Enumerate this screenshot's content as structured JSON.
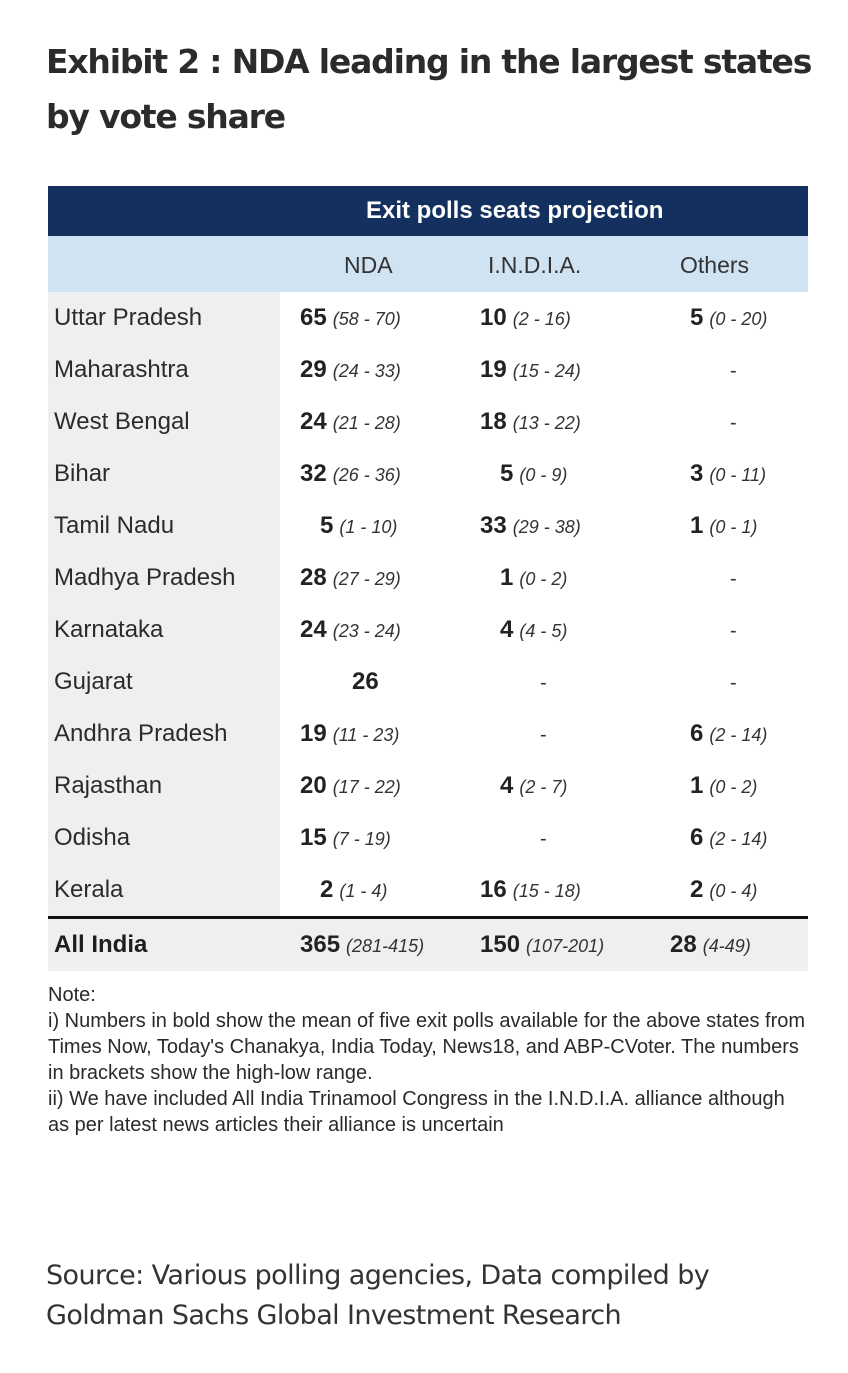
{
  "title": "Exhibit 2 : NDA leading in the largest states by vote share",
  "table": {
    "header": "Exit polls seats projection",
    "columns": [
      "NDA",
      "I.N.D.I.A.",
      "Others"
    ],
    "rows": [
      {
        "state": "Uttar Pradesh",
        "nda": "65",
        "nda_range": "(58 - 70)",
        "india": "10",
        "india_range": "(2 - 16)",
        "others": "5",
        "others_range": "(0 - 20)"
      },
      {
        "state": "Maharashtra",
        "nda": "29",
        "nda_range": "(24 - 33)",
        "india": "19",
        "india_range": "(15 - 24)",
        "others": "-",
        "others_range": ""
      },
      {
        "state": "West Bengal",
        "nda": "24",
        "nda_range": "(21 - 28)",
        "india": "18",
        "india_range": "(13 - 22)",
        "others": "-",
        "others_range": ""
      },
      {
        "state": "Bihar",
        "nda": "32",
        "nda_range": "(26 - 36)",
        "india": "5",
        "india_range": "(0 - 9)",
        "others": "3",
        "others_range": "(0 - 11)"
      },
      {
        "state": "Tamil Nadu",
        "nda": "5",
        "nda_range": "(1 - 10)",
        "india": "33",
        "india_range": "(29 - 38)",
        "others": "1",
        "others_range": "(0 - 1)"
      },
      {
        "state": "Madhya Pradesh",
        "nda": "28",
        "nda_range": "(27 - 29)",
        "india": "1",
        "india_range": "(0 - 2)",
        "others": "-",
        "others_range": ""
      },
      {
        "state": "Karnataka",
        "nda": "24",
        "nda_range": "(23 - 24)",
        "india": "4",
        "india_range": "(4 - 5)",
        "others": "-",
        "others_range": ""
      },
      {
        "state": "Gujarat",
        "nda": "26",
        "nda_range": "",
        "india": "-",
        "india_range": "",
        "others": "-",
        "others_range": ""
      },
      {
        "state": "Andhra Pradesh",
        "nda": "19",
        "nda_range": "(11 - 23)",
        "india": "-",
        "india_range": "",
        "others": "6",
        "others_range": "(2 - 14)"
      },
      {
        "state": "Rajasthan",
        "nda": "20",
        "nda_range": "(17 - 22)",
        "india": "4",
        "india_range": "(2 - 7)",
        "others": "1",
        "others_range": "(0 - 2)"
      },
      {
        "state": "Odisha",
        "nda": "15",
        "nda_range": "(7 - 19)",
        "india": "-",
        "india_range": "",
        "others": "6",
        "others_range": "(2 - 14)"
      },
      {
        "state": "Kerala",
        "nda": "2",
        "nda_range": "(1 - 4)",
        "india": "16",
        "india_range": "(15 - 18)",
        "others": "2",
        "others_range": "(0 - 4)"
      }
    ],
    "total": {
      "state": "All India",
      "nda": "365",
      "nda_range": "(281-415)",
      "india": "150",
      "india_range": "(107-201)",
      "others": "28",
      "others_range": "(4-49)"
    }
  },
  "note": {
    "heading": "Note:",
    "line1": "i) Numbers in bold show the mean of five exit polls available for the above states from Times Now, Today's Chanakya, India Today, News18, and ABP-CVoter. The numbers in brackets show the high-low range.",
    "line2": "ii) We have included All India Trinamool Congress in the I.N.D.I.A. alliance although as per latest news articles their alliance is uncertain"
  },
  "source": "Source: Various polling agencies, Data compiled by Goldman Sachs Global Investment Research",
  "colors": {
    "header_bg": "#13305f",
    "subheader_bg": "#cfe3f3",
    "label_bg": "#efefef"
  }
}
